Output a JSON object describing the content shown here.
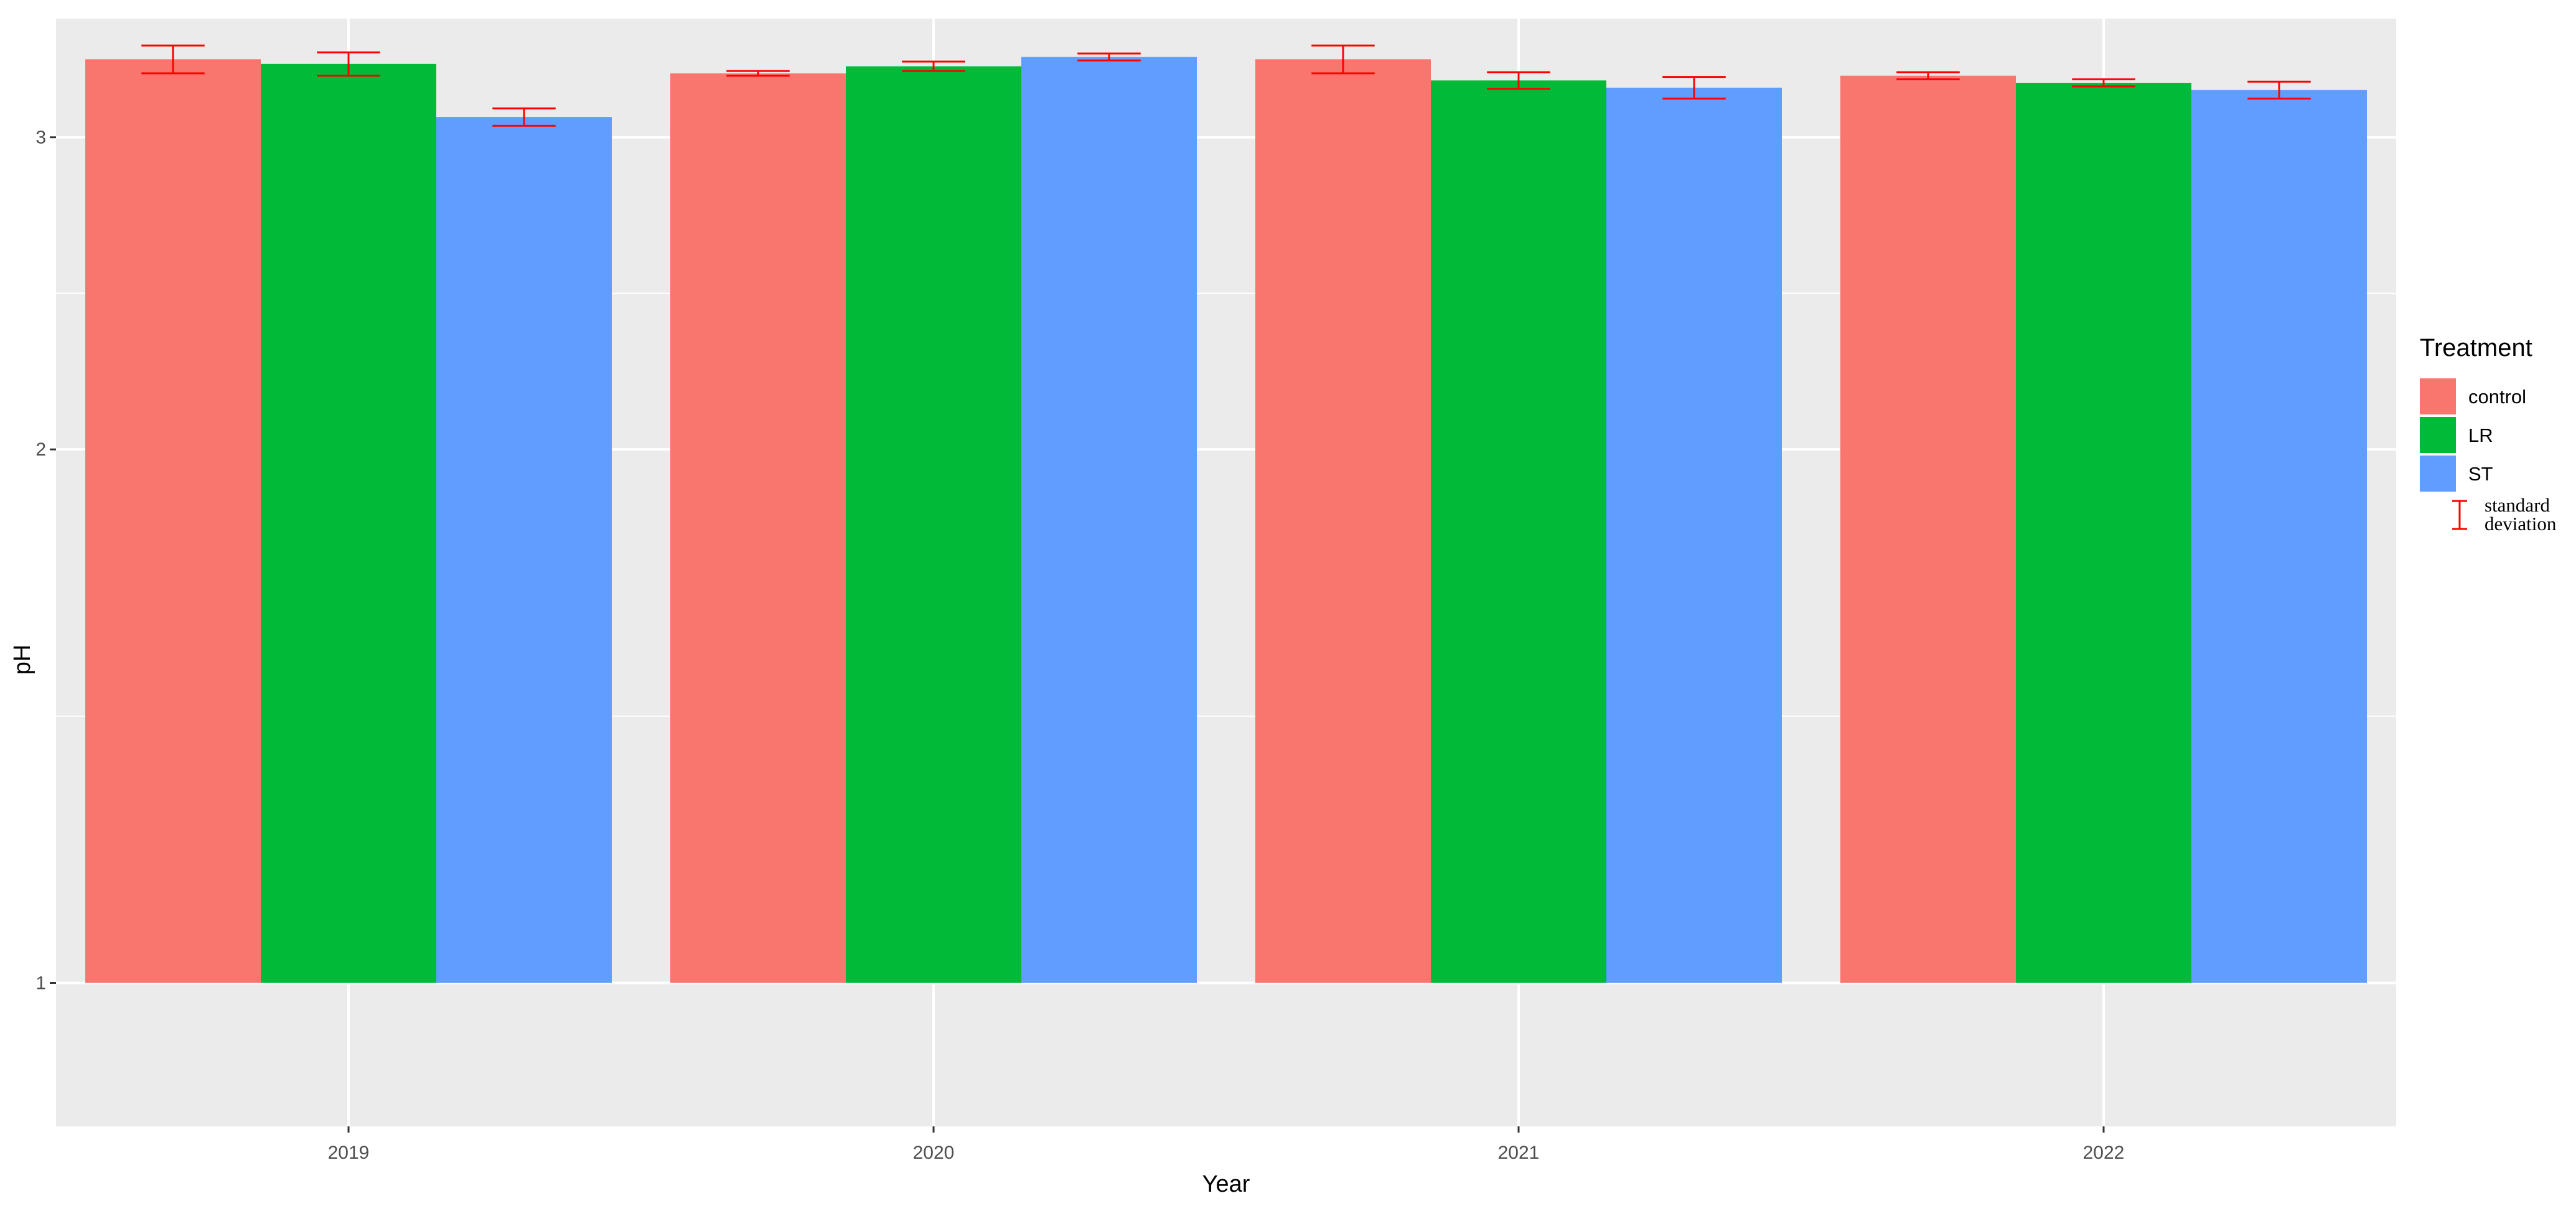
{
  "chart_data": {
    "type": "bar",
    "title": "",
    "xlabel": "Year",
    "ylabel": "pH",
    "categories": [
      "2019",
      "2020",
      "2021",
      "2022"
    ],
    "ylim": [
      0.83,
      3.5
    ],
    "y_scale": "log",
    "y_ticks": [
      1,
      2,
      3
    ],
    "y_tick_labels": [
      "1",
      "2",
      "3"
    ],
    "grid": true,
    "background": "#ebebeb",
    "series": [
      {
        "name": "control",
        "color": "#f8766d",
        "values": [
          3.32,
          3.26,
          3.32,
          3.25
        ],
        "sd": [
          0.06,
          0.01,
          0.06,
          0.015
        ]
      },
      {
        "name": "LR",
        "color": "#00ba38",
        "values": [
          3.3,
          3.29,
          3.23,
          3.22
        ],
        "sd": [
          0.05,
          0.02,
          0.035,
          0.015
        ]
      },
      {
        "name": "ST",
        "color": "#619cff",
        "values": [
          3.08,
          3.33,
          3.2,
          3.19
        ],
        "sd": [
          0.035,
          0.015,
          0.045,
          0.035
        ]
      }
    ],
    "error_bar_color": "#ff0000",
    "legend": {
      "title": "Treatment",
      "position": "right",
      "error_label_line1": "standard",
      "error_label_line2": "deviation"
    }
  }
}
